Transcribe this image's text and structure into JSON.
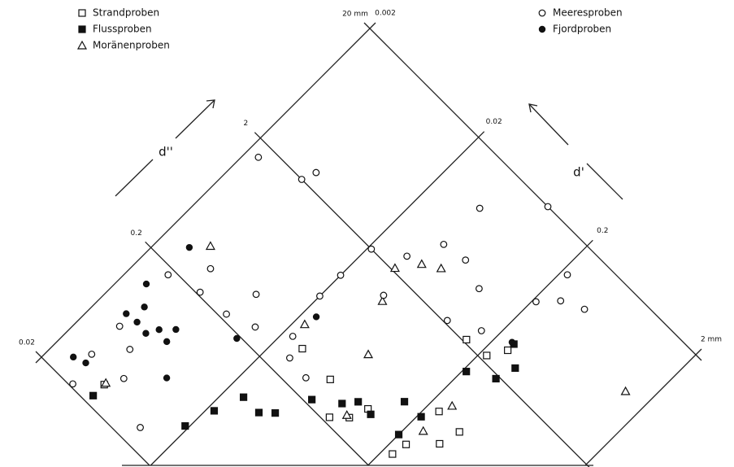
{
  "chart_data": {
    "type": "scatter",
    "log_scale": true,
    "grid": true,
    "xlabel": "d''",
    "ylabel": "d'",
    "xlim": [
      0.02,
      20
    ],
    "xticks": [
      0.02,
      0.2,
      2,
      {
        "value": 20,
        "label": "20 mm"
      }
    ],
    "ylim": [
      0.002,
      2
    ],
    "yticks": [
      0.002,
      0.02,
      0.2,
      {
        "value": 2,
        "label": "2 mm"
      }
    ],
    "series": [
      {
        "name": "Strandproben",
        "marker": "square-open",
        "color": "#111",
        "x": [
          0.34,
          0.33,
          0.22,
          0.36,
          0.74,
          0.74,
          0.53,
          0.29,
          0.37,
          2.1,
          2.2,
          2.9,
          0.029,
          0.27
        ],
        "y": [
          0.029,
          0.054,
          0.08,
          0.11,
          0.24,
          0.37,
          0.34,
          0.23,
          0.24,
          0.15,
          0.22,
          0.26,
          0.0052,
          0.099
        ]
      },
      {
        "name": "Flussproben",
        "marker": "square-filled",
        "color": "#111",
        "x": [
          0.023,
          0.044,
          0.07,
          0.11,
          0.11,
          0.13,
          0.22,
          0.29,
          0.35,
          0.57,
          0.38,
          0.58,
          1.5,
          1.9,
          2.6,
          3.3,
          0.35
        ],
        "y": [
          0.0052,
          0.019,
          0.022,
          0.026,
          0.036,
          0.043,
          0.055,
          0.079,
          0.12,
          0.15,
          0.2,
          0.21,
          0.21,
          0.31,
          0.34,
          0.26,
          0.092
        ]
      },
      {
        "name": "Moränenproben",
        "marker": "triangle-open",
        "color": "#111",
        "x": [
          0.38,
          0.64,
          1.3,
          2.1,
          2.9,
          3.4,
          0.45,
          0.9,
          0.51,
          0.27,
          6.5,
          0.03
        ],
        "y": [
          0.0037,
          0.062,
          0.041,
          0.033,
          0.042,
          0.054,
          0.023,
          0.26,
          0.25,
          0.094,
          1.4,
          0.0052
        ]
      },
      {
        "name": "Meeresproben",
        "marker": "circle-open",
        "color": "#111",
        "x": [
          1.6,
          2.0,
          2.5,
          9.6,
          20,
          4.5,
          2.7,
          4.8,
          1.1,
          1.4,
          4.1,
          2.1,
          2.7,
          12,
          6.5,
          8.5,
          10,
          0.18,
          0.3,
          0.21,
          0.22,
          0.37,
          0.26,
          0.35,
          0.71,
          0.27,
          0.26,
          0.021,
          0.035,
          0.055,
          0.038,
          0.063,
          0.027,
          2.0
        ],
        "y": [
          0.0024,
          0.0048,
          0.0052,
          0.043,
          0.087,
          0.043,
          0.033,
          0.064,
          0.02,
          0.039,
          0.1,
          0.1,
          0.16,
          0.22,
          0.21,
          0.27,
          0.38,
          0.0032,
          0.0047,
          0.0054,
          0.009,
          0.01,
          0.014,
          0.023,
          0.02,
          0.028,
          0.041,
          0.0037,
          0.0033,
          0.0047,
          0.006,
          0.0033,
          0.012,
          0.021
        ]
      },
      {
        "name": "Fjordproben",
        "marker": "circle-filled",
        "color": "#111",
        "x": [
          0.3,
          0.13,
          0.077,
          0.1,
          0.079,
          0.077,
          0.11,
          0.088,
          0.028,
          0.03,
          0.06,
          0.19,
          0.55,
          3.3,
          0.092
        ],
        "y": [
          0.003,
          0.0028,
          0.0031,
          0.0035,
          0.0038,
          0.0047,
          0.0062,
          0.0064,
          0.0028,
          0.0034,
          0.0094,
          0.013,
          0.024,
          0.25,
          0.0052
        ]
      }
    ]
  }
}
